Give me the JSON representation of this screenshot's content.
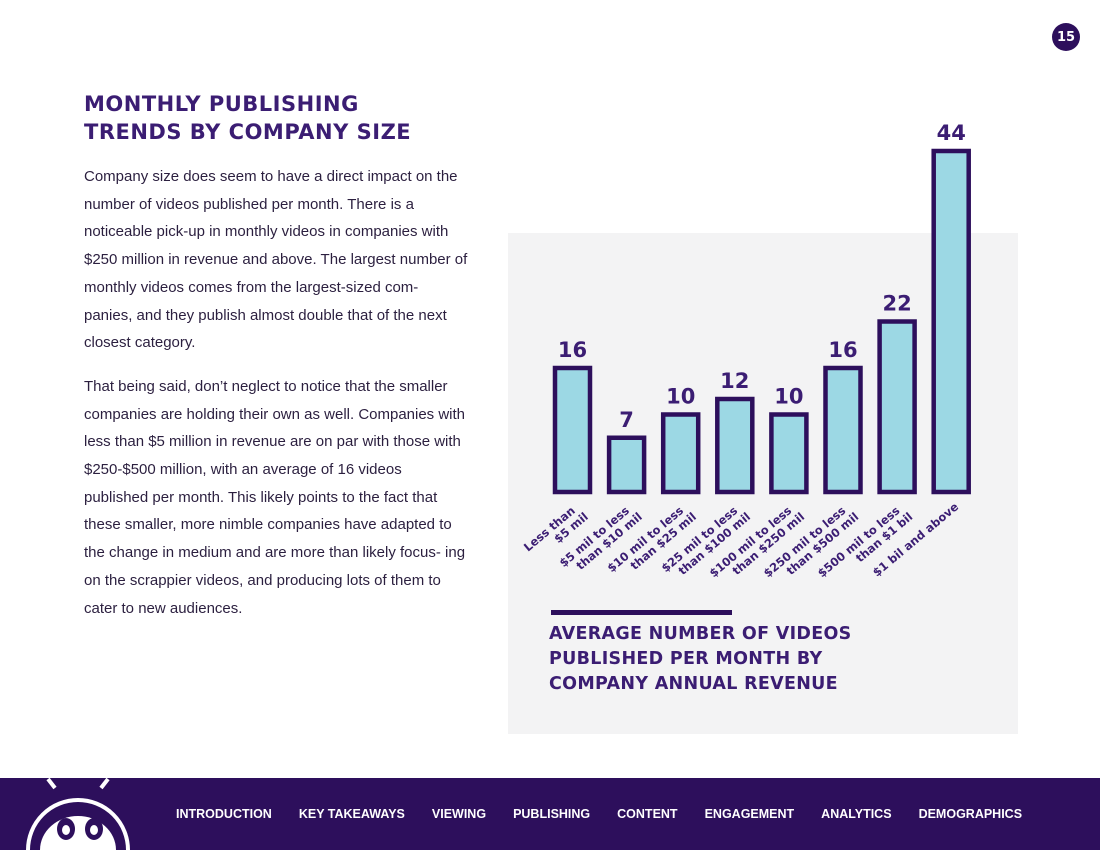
{
  "page_number": "15",
  "title_lines": [
    "MONTHLY PUBLISHING",
    "TRENDS BY COMPANY SIZE"
  ],
  "paragraphs": [
    "Company size does seem to have a direct impact on the number of videos published per month. There is a noticeable pick-up in monthly videos in companies with $250 million in revenue and above. The largest number of monthly videos comes from the largest-sized com- panies, and they publish almost double that of the next closest category.",
    "That being said, don’t neglect to notice that the smaller companies are holding their own as well. Companies with less than $5 million in revenue are on par with those with $250-$500 million, with an average of 16 videos published per month. This likely points to the fact that these smaller, more nimble companies have adapted to the change in medium and are more than likely focus- ing on the scrappier videos, and producing lots of them to cater to new audiences."
  ],
  "chart_data": {
    "type": "bar",
    "categories": [
      [
        "Less than",
        "$5 mil"
      ],
      [
        "$5 mil to less",
        "than $10 mil"
      ],
      [
        "$10 mil to less",
        "than $25 mil"
      ],
      [
        "$25 mil to less",
        "than $100 mil"
      ],
      [
        "$100 mil to less",
        "than $250 mil"
      ],
      [
        "$250 mil to less",
        "than $500 mil"
      ],
      [
        "$500 mil to less",
        "than $1 bil"
      ],
      [
        "$1 bil and above"
      ]
    ],
    "values": [
      16,
      7,
      10,
      12,
      10,
      16,
      22,
      44
    ],
    "data_labels": [
      "16",
      "7",
      "10",
      "12",
      "10",
      "16",
      "22",
      "44"
    ],
    "title_lines": [
      "AVERAGE NUMBER OF VIDEOS",
      "PUBLISHED PER MONTH BY",
      "COMPANY ANNUAL REVENUE"
    ],
    "bar_fill": "#9cd8e4",
    "bar_stroke": "#2d0f5c",
    "label_color": "#3b1d73",
    "grid": false,
    "legend": "none"
  },
  "footer": {
    "background": "#2d0f5c",
    "nav": [
      "INTRODUCTION",
      "KEY TAKEAWAYS",
      "VIEWING",
      "PUBLISHING",
      "CONTENT",
      "ENGAGEMENT",
      "ANALYTICS",
      "DEMOGRAPHICS"
    ],
    "mascot_icon": "robot-mascot-icon"
  }
}
